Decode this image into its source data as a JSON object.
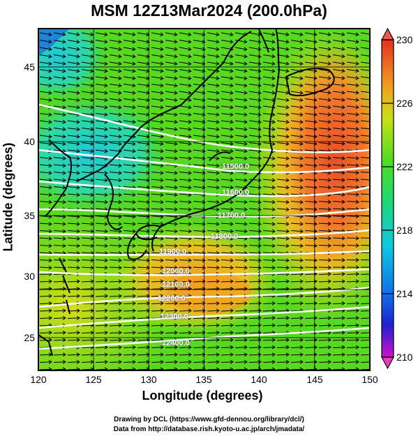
{
  "title": "MSM 12Z13Mar2024 (200.0hPa)",
  "xaxis": {
    "label": "Longitude (degrees)",
    "ticks": [
      "120",
      "125",
      "130",
      "135",
      "140",
      "145",
      "150"
    ]
  },
  "yaxis": {
    "label": "Latitude  (degrees)",
    "ticks": [
      "45",
      "40",
      "35",
      "30",
      "25"
    ]
  },
  "colorbar": {
    "ticks": [
      "230",
      "226",
      "222",
      "218",
      "214",
      "210"
    ],
    "min": 210,
    "max": 230
  },
  "contour_labels": [
    "11500.0",
    "11600.0",
    "11700.0",
    "11800.0",
    "11900.0",
    "12000.0",
    "12100.0",
    "12200.0",
    "12300.0",
    "12400.0"
  ],
  "credits": {
    "line1": "Drawing by DCL (https://www.gfd-dennou.org/library/dcl/)",
    "line2": "Data from http://database.rish.kyoto-u.ac.jp/arch/jmadata/"
  },
  "colors": {
    "field_green": "#48d81e",
    "field_yellow": "#c8e018",
    "field_orange": "#f08c20",
    "field_red": "#e85a28",
    "field_cyan": "#28d4c0",
    "contour": "#ffffff",
    "arrow": "#000000"
  }
}
